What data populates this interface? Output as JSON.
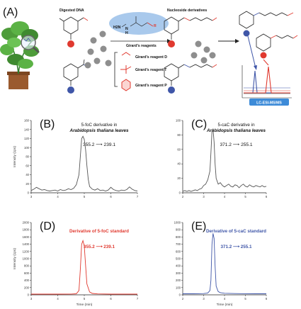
{
  "panel_a": {
    "letter": "(A)",
    "label_digested": "Digested DNA",
    "label_nucleoside": "Nucleoside derivatives",
    "label_girard_reagents": "Girard's reagents",
    "label_reagent_d": "Girard's reagent D",
    "label_reagent_t": "Girard's reagent T",
    "label_reagent_p": "Girard's reagent P",
    "lcms_label": "LC-ESI-MS/MS",
    "reagent_formula_h2n": "H2N",
    "reagent_formula_n": "N",
    "reagent_formula_h": "H",
    "reagent_formula_r": "R",
    "colors": {
      "red": "#e0392f",
      "blue": "#3f56a8",
      "lcms_bg": "#3d8bd8",
      "reagent_oval": "#a9c9ec"
    }
  },
  "chart_data": [
    {
      "panel": "(B)",
      "type": "line",
      "title": "5-foC derivative in",
      "subtitle": "Arabidopsis thaliana leaves",
      "transition": "355.2 ⟶ 239.1",
      "ylabel": "Intensity (cps)",
      "xlabel": "",
      "ylim": [
        0,
        160
      ],
      "xlim": [
        3,
        7
      ],
      "yticks": [
        "0",
        "20",
        "40",
        "60",
        "80",
        "100",
        "120",
        "140",
        "160"
      ],
      "xticks": [
        "3",
        "4",
        "5",
        "6",
        "7"
      ],
      "color": "#555555",
      "series": [
        {
          "x": [
            3.0,
            3.1,
            3.2,
            3.3,
            3.4,
            3.5,
            3.6,
            3.7,
            3.8,
            3.9,
            4.0,
            4.1,
            4.2,
            4.3,
            4.4,
            4.5,
            4.6,
            4.7,
            4.8,
            4.85,
            4.9,
            4.95,
            5.0,
            5.05,
            5.1,
            5.15,
            5.2,
            5.3,
            5.4,
            5.5,
            5.6,
            5.7,
            5.8,
            5.9,
            6.0,
            6.1,
            6.2,
            6.3,
            6.4,
            6.5,
            6.6,
            6.7,
            6.8,
            6.9,
            7.0
          ],
          "y": [
            5,
            8,
            12,
            9,
            6,
            7,
            5,
            4,
            5,
            6,
            4,
            7,
            5,
            6,
            9,
            7,
            10,
            18,
            40,
            80,
            120,
            125,
            118,
            95,
            60,
            30,
            14,
            8,
            6,
            9,
            5,
            6,
            4,
            6,
            12,
            7,
            5,
            4,
            6,
            5,
            7,
            13,
            8,
            5,
            4
          ]
        }
      ]
    },
    {
      "panel": "(C)",
      "type": "line",
      "title": "5-caC derivative in",
      "subtitle": "Arabidopsis thaliana leaves",
      "transition": "371.2 ⟶ 255.1",
      "ylabel": "",
      "xlabel": "",
      "ylim": [
        0,
        100
      ],
      "xlim": [
        2,
        6
      ],
      "yticks": [
        "0",
        "20",
        "40",
        "60",
        "80",
        "100"
      ],
      "xticks": [
        "2",
        "3",
        "4",
        "5",
        "6"
      ],
      "color": "#555555",
      "series": [
        {
          "x": [
            2.0,
            2.1,
            2.2,
            2.3,
            2.4,
            2.5,
            2.6,
            2.7,
            2.8,
            2.9,
            3.0,
            3.1,
            3.2,
            3.3,
            3.35,
            3.4,
            3.45,
            3.5,
            3.55,
            3.6,
            3.7,
            3.8,
            3.9,
            4.0,
            4.1,
            4.2,
            4.3,
            4.4,
            4.5,
            4.6,
            4.7,
            4.8,
            4.9,
            5.0,
            5.1,
            5.2,
            5.3,
            5.4,
            5.5,
            5.6,
            5.7,
            5.8,
            5.9,
            6.0
          ],
          "y": [
            2,
            3,
            2,
            3,
            2,
            3,
            4,
            3,
            5,
            6,
            10,
            12,
            18,
            30,
            55,
            85,
            88,
            70,
            40,
            20,
            12,
            14,
            10,
            8,
            10,
            12,
            9,
            8,
            11,
            10,
            7,
            10,
            12,
            9,
            8,
            11,
            9,
            8,
            10,
            9,
            8,
            10,
            8,
            9
          ]
        }
      ]
    },
    {
      "panel": "(D)",
      "type": "line",
      "title": "Derivative of 5-foC standard",
      "transition": "355.2 ⟶ 239.1",
      "ylabel": "Intensity (cps)",
      "xlabel": "Time (min)",
      "ylim": [
        0,
        2000
      ],
      "xlim": [
        3,
        7
      ],
      "yticks": [
        "0",
        "200",
        "400",
        "600",
        "800",
        "1000",
        "1200",
        "1400",
        "1600",
        "1800",
        "2000"
      ],
      "xticks": [
        "3",
        "4",
        "5",
        "6",
        "7"
      ],
      "color": "#e0392f",
      "series": [
        {
          "x": [
            3.0,
            3.5,
            4.0,
            4.5,
            4.7,
            4.8,
            4.85,
            4.9,
            4.95,
            5.0,
            5.05,
            5.1,
            5.2,
            5.3,
            5.5,
            6.0,
            6.5,
            7.0
          ],
          "y": [
            20,
            20,
            20,
            22,
            30,
            120,
            700,
            1400,
            1500,
            1350,
            800,
            300,
            80,
            40,
            25,
            20,
            20,
            20
          ]
        }
      ]
    },
    {
      "panel": "(E)",
      "type": "line",
      "title": "Derivative of 5-caC standard",
      "transition": "371.2 ⟶ 255.1",
      "ylabel": "",
      "xlabel": "Time (min)",
      "ylim": [
        0,
        1000
      ],
      "xlim": [
        2,
        6
      ],
      "yticks": [
        "0",
        "100",
        "200",
        "300",
        "400",
        "500",
        "600",
        "700",
        "800",
        "900",
        "1000"
      ],
      "xticks": [
        "2",
        "3",
        "4",
        "5",
        "6"
      ],
      "color": "#3f56a8",
      "series": [
        {
          "x": [
            2.0,
            2.5,
            3.0,
            3.2,
            3.3,
            3.35,
            3.4,
            3.45,
            3.5,
            3.55,
            3.6,
            3.7,
            3.8,
            4.0,
            4.5,
            5.0,
            5.5,
            6.0
          ],
          "y": [
            15,
            15,
            18,
            25,
            60,
            200,
            700,
            850,
            780,
            400,
            120,
            45,
            30,
            22,
            18,
            16,
            15,
            15
          ]
        }
      ]
    }
  ]
}
